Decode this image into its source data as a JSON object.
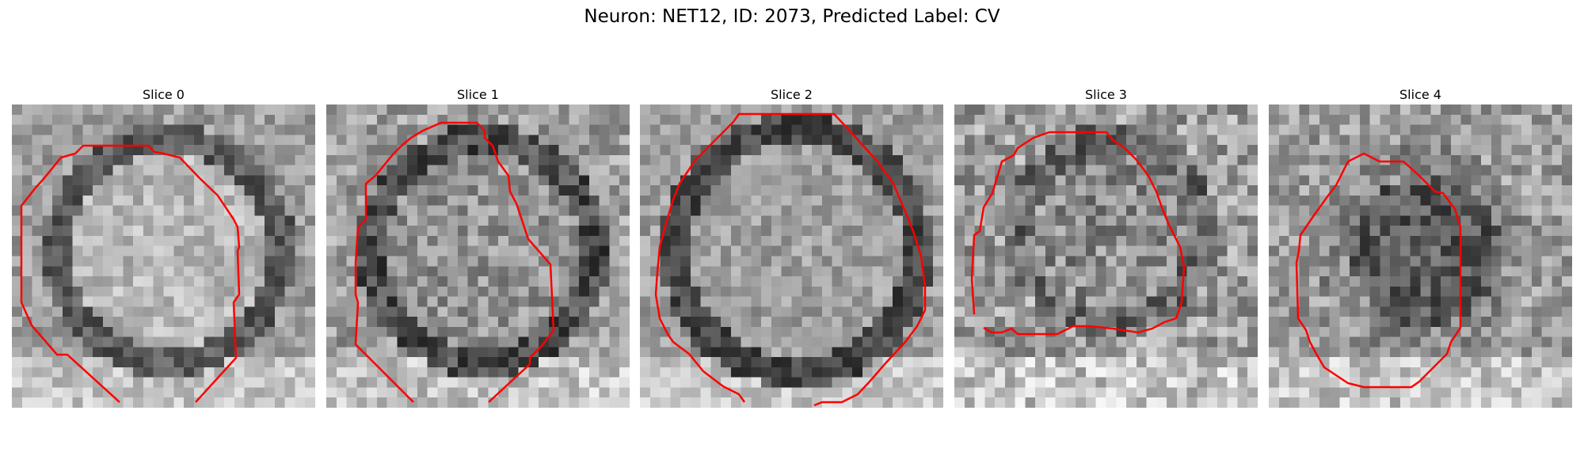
{
  "figure": {
    "title": "Neuron: NET12, ID: 2073, Predicted Label: CV",
    "contour_color": "#ff0000",
    "image_colormap": "gray"
  },
  "panels": [
    {
      "title": "Slice 0"
    },
    {
      "title": "Slice 1"
    },
    {
      "title": "Slice 2"
    },
    {
      "title": "Slice 3"
    },
    {
      "title": "Slice 4"
    }
  ]
}
